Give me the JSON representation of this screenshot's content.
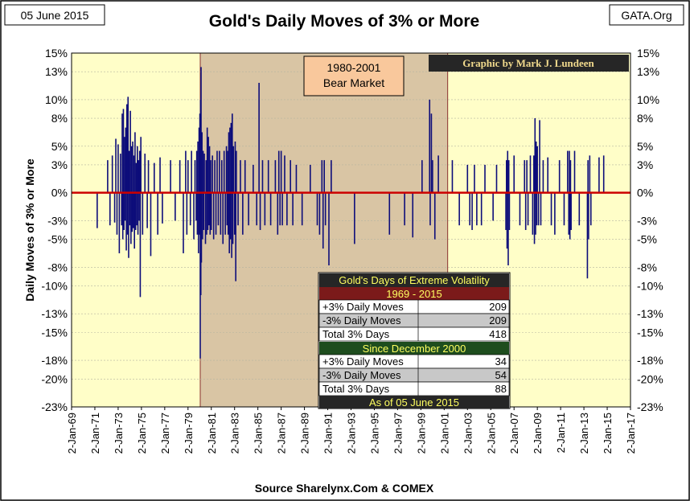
{
  "header": {
    "date": "05 June 2015",
    "source_tag": "GATA.Org"
  },
  "chart_data": {
    "type": "bar",
    "title": "Gold's Daily Moves of 3% or More",
    "ylabel": "Daily  Moves  of  3%  or More",
    "xlabel": "Source Sharelynx.Com & COMEX",
    "credit": "Graphic by Mark J. Lundeen",
    "ylim": [
      -23,
      15
    ],
    "xlim": [
      1969,
      2017
    ],
    "y_ticks": [
      15,
      13,
      10,
      8,
      5,
      3,
      0,
      -3,
      -5,
      -8,
      -10,
      -13,
      -15,
      -18,
      -20,
      -23
    ],
    "y_tick_labels": [
      "15%",
      "13%",
      "10%",
      "8%",
      "5%",
      "3%",
      "0%",
      "-3%",
      "-5%",
      "-8%",
      "-10%",
      "-13%",
      "-15%",
      "-18%",
      "-20%",
      "-23%"
    ],
    "x_tick_labels": [
      "2-Jan-69",
      "2-Jan-71",
      "2-Jan-73",
      "2-Jan-75",
      "2-Jan-77",
      "2-Jan-79",
      "2-Jan-81",
      "2-Jan-83",
      "2-Jan-85",
      "2-Jan-87",
      "2-Jan-89",
      "2-Jan-91",
      "2-Jan-93",
      "2-Jan-95",
      "2-Jan-97",
      "2-Jan-99",
      "2-Jan-01",
      "2-Jan-03",
      "2-Jan-05",
      "2-Jan-07",
      "2-Jan-09",
      "2-Jan-11",
      "2-Jan-13",
      "2-Jan-15",
      "2-Jan-17"
    ],
    "bear_market": {
      "label_line1": "1980-2001",
      "label_line2": "Bear Market",
      "start": 1980.05,
      "end": 2001.3
    },
    "series": [
      {
        "name": "Daily moves of 3% or more",
        "points": [
          [
            1971.2,
            -3.8
          ],
          [
            1972.1,
            3.5
          ],
          [
            1972.3,
            -3.5
          ],
          [
            1972.5,
            4.0
          ],
          [
            1972.7,
            -3.2
          ],
          [
            1972.8,
            5.8
          ],
          [
            1972.9,
            -4.5
          ],
          [
            1973.0,
            5.2
          ],
          [
            1973.1,
            -6.5
          ],
          [
            1973.2,
            4.2
          ],
          [
            1973.3,
            -3.5
          ],
          [
            1973.35,
            8.5
          ],
          [
            1973.4,
            -5.0
          ],
          [
            1973.45,
            9.0
          ],
          [
            1973.5,
            -4.0
          ],
          [
            1973.55,
            6.0
          ],
          [
            1973.6,
            -3.0
          ],
          [
            1973.65,
            7.0
          ],
          [
            1973.7,
            -6.2
          ],
          [
            1973.75,
            9.5
          ],
          [
            1973.8,
            -4.5
          ],
          [
            1973.85,
            10.3
          ],
          [
            1973.9,
            -7.0
          ],
          [
            1973.95,
            4.5
          ],
          [
            1974.0,
            -3.5
          ],
          [
            1974.05,
            8.8
          ],
          [
            1974.1,
            -5.5
          ],
          [
            1974.15,
            5.0
          ],
          [
            1974.2,
            -4.2
          ],
          [
            1974.25,
            5.5
          ],
          [
            1974.3,
            -3.8
          ],
          [
            1974.35,
            4.0
          ],
          [
            1974.4,
            -6.0
          ],
          [
            1974.45,
            6.5
          ],
          [
            1974.5,
            -4.0
          ],
          [
            1974.55,
            3.2
          ],
          [
            1974.6,
            -3.5
          ],
          [
            1974.65,
            5.0
          ],
          [
            1974.7,
            -4.5
          ],
          [
            1974.75,
            3.5
          ],
          [
            1974.8,
            -3.0
          ],
          [
            1974.85,
            4.5
          ],
          [
            1974.9,
            -11.2
          ],
          [
            1974.95,
            6.0
          ],
          [
            1975.1,
            -4.5
          ],
          [
            1975.3,
            4.2
          ],
          [
            1975.5,
            -3.8
          ],
          [
            1975.6,
            3.5
          ],
          [
            1975.8,
            -6.8
          ],
          [
            1976.1,
            3.2
          ],
          [
            1976.4,
            -4.5
          ],
          [
            1976.6,
            3.8
          ],
          [
            1976.8,
            -3.3
          ],
          [
            1977.5,
            3.5
          ],
          [
            1977.9,
            -3.0
          ],
          [
            1978.3,
            3.5
          ],
          [
            1978.6,
            -6.5
          ],
          [
            1978.8,
            4.5
          ],
          [
            1978.9,
            -4.5
          ],
          [
            1979.0,
            3.5
          ],
          [
            1979.2,
            -3.5
          ],
          [
            1979.3,
            4.5
          ],
          [
            1979.5,
            -5.0
          ],
          [
            1979.6,
            3.5
          ],
          [
            1979.7,
            -3.0
          ],
          [
            1979.75,
            4.5
          ],
          [
            1979.8,
            -4.5
          ],
          [
            1979.85,
            5.5
          ],
          [
            1979.9,
            -6.5
          ],
          [
            1979.95,
            7.0
          ],
          [
            1980.0,
            -4.5
          ],
          [
            1980.02,
            8.5
          ],
          [
            1980.05,
            -17.8
          ],
          [
            1980.08,
            10.0
          ],
          [
            1980.1,
            -11.0
          ],
          [
            1980.12,
            13.5
          ],
          [
            1980.15,
            -7.5
          ],
          [
            1980.2,
            6.5
          ],
          [
            1980.25,
            -5.0
          ],
          [
            1980.3,
            4.5
          ],
          [
            1980.35,
            -4.0
          ],
          [
            1980.4,
            4.2
          ],
          [
            1980.5,
            -5.5
          ],
          [
            1980.55,
            3.5
          ],
          [
            1980.6,
            -4.5
          ],
          [
            1980.65,
            7.0
          ],
          [
            1980.7,
            -4.0
          ],
          [
            1980.75,
            6.0
          ],
          [
            1980.8,
            -3.5
          ],
          [
            1980.85,
            5.0
          ],
          [
            1980.9,
            -4.5
          ],
          [
            1980.95,
            3.5
          ],
          [
            1981.0,
            -4.0
          ],
          [
            1981.1,
            4.0
          ],
          [
            1981.2,
            -5.0
          ],
          [
            1981.3,
            3.5
          ],
          [
            1981.4,
            -4.5
          ],
          [
            1981.5,
            4.5
          ],
          [
            1981.6,
            -3.5
          ],
          [
            1981.7,
            4.5
          ],
          [
            1981.8,
            -4.5
          ],
          [
            1981.9,
            3.5
          ],
          [
            1982.0,
            -5.5
          ],
          [
            1982.1,
            4.5
          ],
          [
            1982.2,
            -4.5
          ],
          [
            1982.3,
            5.0
          ],
          [
            1982.35,
            -3.5
          ],
          [
            1982.4,
            4.5
          ],
          [
            1982.45,
            -4.5
          ],
          [
            1982.5,
            6.5
          ],
          [
            1982.55,
            -6.5
          ],
          [
            1982.6,
            7.0
          ],
          [
            1982.65,
            -5.0
          ],
          [
            1982.7,
            7.5
          ],
          [
            1982.75,
            -7.0
          ],
          [
            1982.8,
            8.5
          ],
          [
            1982.85,
            -5.5
          ],
          [
            1982.9,
            5.0
          ],
          [
            1983.0,
            -4.5
          ],
          [
            1983.05,
            5.5
          ],
          [
            1983.1,
            -9.5
          ],
          [
            1983.15,
            4.5
          ],
          [
            1983.3,
            -3.5
          ],
          [
            1983.5,
            3.5
          ],
          [
            1983.7,
            -4.5
          ],
          [
            1983.9,
            3.5
          ],
          [
            1984.2,
            -3.5
          ],
          [
            1984.6,
            3.0
          ],
          [
            1984.9,
            -3.5
          ],
          [
            1985.1,
            11.8
          ],
          [
            1985.2,
            -4.0
          ],
          [
            1985.4,
            3.5
          ],
          [
            1985.6,
            -3.5
          ],
          [
            1985.9,
            3.5
          ],
          [
            1986.1,
            -3.5
          ],
          [
            1986.5,
            3.5
          ],
          [
            1986.7,
            -4.5
          ],
          [
            1986.8,
            4.5
          ],
          [
            1986.9,
            -3.5
          ],
          [
            1987.0,
            4.5
          ],
          [
            1987.1,
            -3.5
          ],
          [
            1987.3,
            4.0
          ],
          [
            1987.5,
            -3.5
          ],
          [
            1987.8,
            3.5
          ],
          [
            1988.0,
            -3.5
          ],
          [
            1988.3,
            3.0
          ],
          [
            1988.8,
            -3.5
          ],
          [
            1989.5,
            3.0
          ],
          [
            1990.1,
            -3.5
          ],
          [
            1990.3,
            -4.5
          ],
          [
            1990.5,
            3.5
          ],
          [
            1990.6,
            -6.0
          ],
          [
            1990.7,
            3.5
          ],
          [
            1990.8,
            -3.5
          ],
          [
            1991.1,
            -7.8
          ],
          [
            1991.3,
            3.5
          ],
          [
            1993.3,
            -5.5
          ],
          [
            1996.3,
            -4.5
          ],
          [
            1997.6,
            -3.5
          ],
          [
            1998.3,
            -4.8
          ],
          [
            1999.1,
            3.5
          ],
          [
            1999.75,
            10.0
          ],
          [
            1999.8,
            -3.5
          ],
          [
            1999.9,
            8.5
          ],
          [
            2000.0,
            3.5
          ],
          [
            2000.2,
            -5.0
          ],
          [
            2000.5,
            4.0
          ],
          [
            2001.7,
            3.5
          ],
          [
            2002.3,
            -3.5
          ],
          [
            2003.0,
            3.0
          ],
          [
            2003.2,
            -3.5
          ],
          [
            2003.4,
            -4.0
          ],
          [
            2003.6,
            3.0
          ],
          [
            2003.8,
            -3.5
          ],
          [
            2004.2,
            -3.5
          ],
          [
            2004.5,
            3.0
          ],
          [
            2005.2,
            -3.0
          ],
          [
            2005.5,
            3.0
          ],
          [
            2006.3,
            -4.0
          ],
          [
            2006.35,
            3.5
          ],
          [
            2006.4,
            -6.0
          ],
          [
            2006.45,
            4.5
          ],
          [
            2006.5,
            -7.8
          ],
          [
            2006.55,
            3.5
          ],
          [
            2006.6,
            -4.0
          ],
          [
            2007.0,
            4.0
          ],
          [
            2007.5,
            -3.5
          ],
          [
            2007.9,
            3.5
          ],
          [
            2008.0,
            -4.0
          ],
          [
            2008.1,
            3.5
          ],
          [
            2008.2,
            -3.5
          ],
          [
            2008.4,
            4.0
          ],
          [
            2008.6,
            -4.5
          ],
          [
            2008.7,
            4.0
          ],
          [
            2008.75,
            -5.5
          ],
          [
            2008.8,
            8.0
          ],
          [
            2008.85,
            -4.5
          ],
          [
            2008.9,
            5.5
          ],
          [
            2008.95,
            -3.5
          ],
          [
            2009.0,
            5.0
          ],
          [
            2009.1,
            -3.5
          ],
          [
            2009.2,
            7.8
          ],
          [
            2009.3,
            -3.5
          ],
          [
            2009.5,
            3.5
          ],
          [
            2009.9,
            3.8
          ],
          [
            2010.2,
            -3.5
          ],
          [
            2010.5,
            -4.5
          ],
          [
            2010.9,
            3.5
          ],
          [
            2011.3,
            -3.5
          ],
          [
            2011.6,
            4.5
          ],
          [
            2011.7,
            -4.5
          ],
          [
            2011.75,
            4.5
          ],
          [
            2011.8,
            -5.0
          ],
          [
            2011.85,
            3.5
          ],
          [
            2011.9,
            -4.0
          ],
          [
            2012.2,
            4.5
          ],
          [
            2012.6,
            -3.5
          ],
          [
            2013.3,
            -9.2
          ],
          [
            2013.35,
            3.5
          ],
          [
            2013.4,
            -5.0
          ],
          [
            2013.5,
            4.0
          ],
          [
            2013.6,
            -3.5
          ],
          [
            2014.3,
            3.8
          ],
          [
            2014.7,
            4.0
          ]
        ]
      }
    ]
  },
  "table": {
    "title": "Gold's Days of Extreme Volatility",
    "period1": "1969 - 2015",
    "rows1": [
      {
        "label": "+3% Daily Moves",
        "value": "209"
      },
      {
        "label": "-3% Daily Moves",
        "value": "209"
      },
      {
        "label": "Total 3% Days",
        "value": "418"
      }
    ],
    "period2": "Since December 2000",
    "rows2": [
      {
        "label": "+3% Daily Moves",
        "value": "34"
      },
      {
        "label": "-3% Daily Moves",
        "value": "54"
      },
      {
        "label": "Total 3% Days",
        "value": "88"
      }
    ],
    "footer": "As of 05 June 2015"
  },
  "colors": {
    "plot_bg": "#fffec8",
    "bear_fill": "#d9c5a4",
    "bar": "#0d0d7a",
    "zero_line": "#cc0000",
    "label_box": "#f9c89c",
    "credit_bg": "#262626",
    "credit_fg": "#f0d98c",
    "table_dark": "#262626",
    "table_red": "#7b1a1a",
    "table_green": "#1e4d1e",
    "table_gray": "#c8c8c8",
    "table_yellow": "#ffff60"
  }
}
